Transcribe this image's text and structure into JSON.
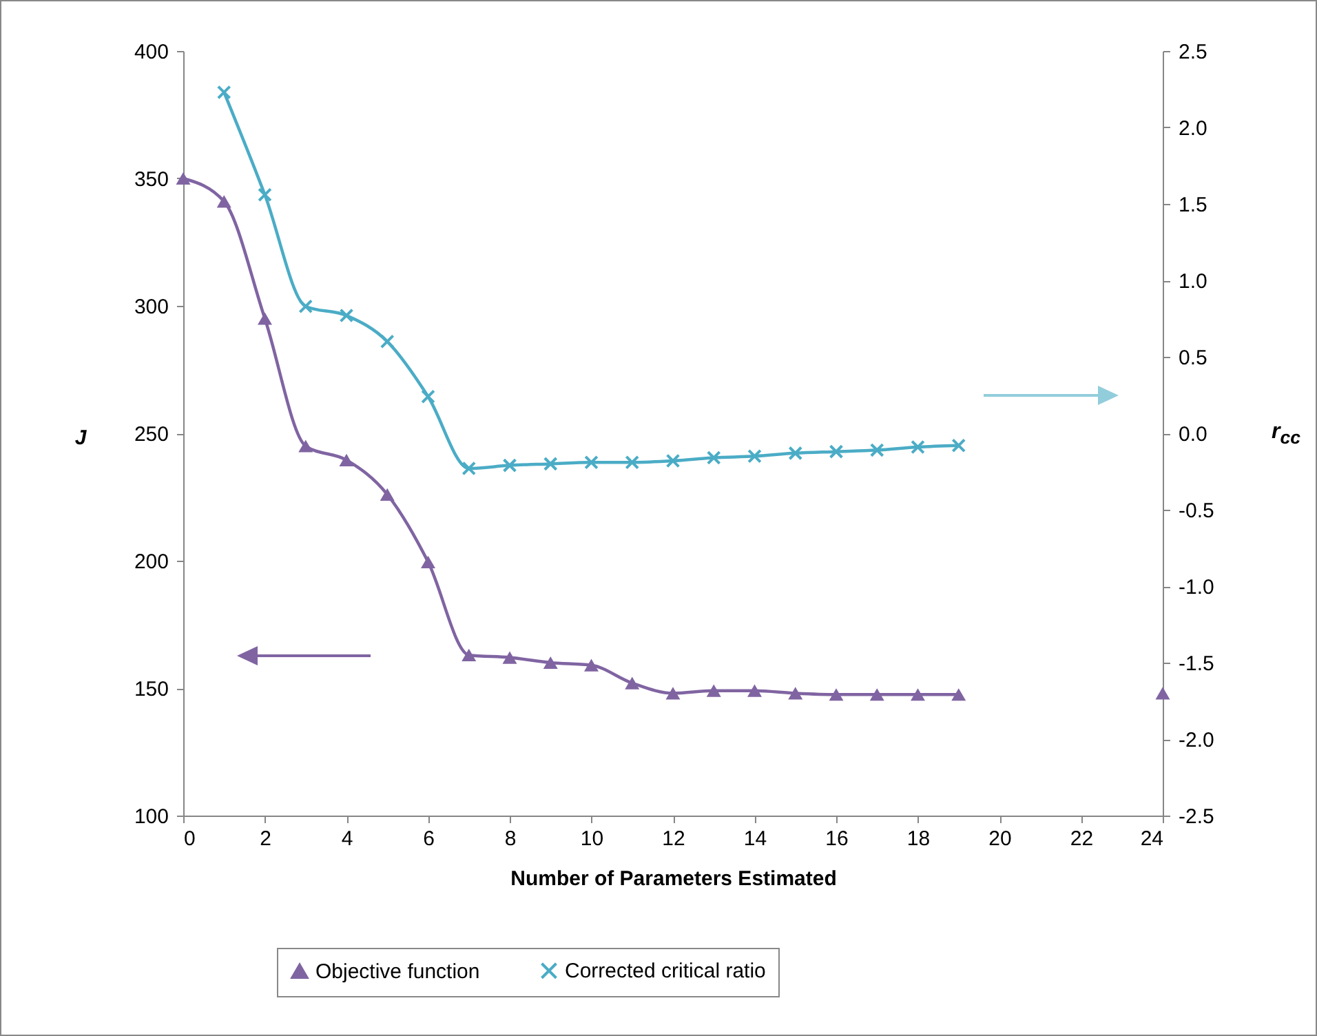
{
  "chart_data": {
    "type": "line",
    "xlabel": "Number of Parameters Estimated",
    "ylabel": "J",
    "y2label": "r$_{cc}$",
    "x": [
      0,
      1,
      2,
      3,
      4,
      5,
      6,
      7,
      8,
      9,
      10,
      11,
      12,
      13,
      14,
      15,
      16,
      17,
      18,
      19
    ],
    "xlim": [
      0,
      24
    ],
    "xticks": [
      0,
      2,
      4,
      6,
      8,
      10,
      12,
      14,
      16,
      18,
      20,
      22,
      24
    ],
    "ylim": [
      100,
      400
    ],
    "yticks": [
      100,
      150,
      200,
      250,
      300,
      350,
      400
    ],
    "y2lim": [
      -2.5,
      2.5
    ],
    "y2ticks": [
      -2.5,
      {
        "value": -2,
        "label": "-2.0"
      },
      -1.5,
      {
        "value": -1,
        "label": "-1.0"
      },
      -0.5,
      {
        "value": 0,
        "label": "0.0"
      },
      0.5,
      {
        "value": 1,
        "label": "1.0"
      },
      1.5,
      {
        "value": 2,
        "label": "2.0"
      },
      2.5
    ],
    "grid": false,
    "legend": "bottom",
    "series": [
      {
        "name": "Objective function",
        "color": "#8064a2",
        "marker": "triangle",
        "values": [
          350,
          341,
          295,
          245,
          239.5,
          226,
          199.5,
          163,
          162,
          160,
          159,
          152,
          148,
          149,
          149,
          148,
          147.5,
          147.5,
          147.5,
          147.5
        ]
      },
      {
        "name": "Corrected critical ratio",
        "color": "#4bacc6",
        "marker": "cross",
        "axis": "y2",
        "x": [
          1,
          2,
          3,
          4,
          5,
          6,
          7,
          8,
          9,
          10,
          11,
          12,
          13,
          14,
          15,
          16,
          17,
          18,
          19
        ],
        "values": [
          2.23,
          1.56,
          0.83,
          0.77,
          0.6,
          0.24,
          -0.23,
          -0.21,
          -0.2,
          -0.19,
          -0.19,
          -0.18,
          -0.16,
          -0.15,
          -0.13,
          -0.12,
          -0.11,
          -0.09,
          -0.08
        ]
      },
      {
        "type": "scatter",
        "color": "#8064a2",
        "marker": "triangle",
        "x": [
          24
        ],
        "values": [
          148
        ]
      }
    ]
  }
}
